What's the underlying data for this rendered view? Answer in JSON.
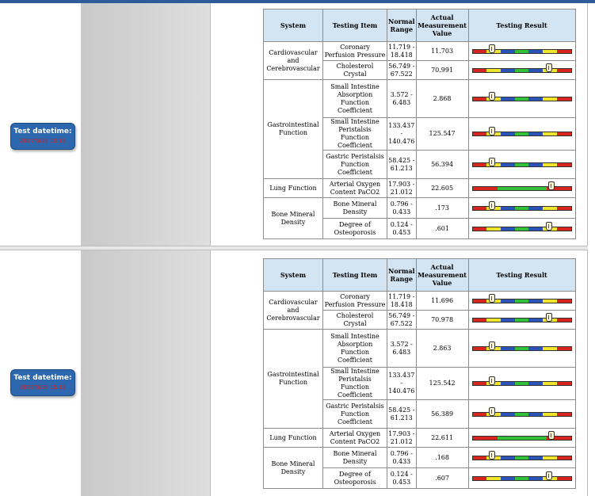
{
  "colors": {
    "red": "#d8251d",
    "yellow": "#f0e52a",
    "blue": "#2c54b8",
    "green": "#34c13a",
    "header_bg": "#d3e4f3",
    "badge_bg": "#2d67ad",
    "badge_value": "#d42020"
  },
  "headers": {
    "system": "System",
    "item": "Testing Item",
    "range": "Normal Range",
    "value": "Actual Measurement Value",
    "result": "Testing Result"
  },
  "records": [
    {
      "datetime_label": "Test datetime:",
      "datetime_value": "2017/3/28 15:11",
      "groups": [
        {
          "system": "Cardiovascular and Cerebrovascular",
          "rows": [
            {
              "item": "Coronary Perfusion Pressure",
              "range": "11.719 - 18.418",
              "value": "11.703",
              "bar": "ryb5",
              "marker": 0.2
            },
            {
              "item": "Cholesterol Crystal",
              "range": "56.749 - 67.522",
              "value": "70.991",
              "bar": "rybgybr",
              "marker": 0.78
            }
          ]
        },
        {
          "system": "Gastrointestinal Function",
          "rows": [
            {
              "item": "Small Intestine Absorption Function Coefficient",
              "range": "3.572 - 6.483",
              "value": "2.868",
              "bar": "ryb5",
              "marker": 0.2
            },
            {
              "item": "Small Intestine Peristalsis Function Coefficient",
              "range": "133.437 - 140.476",
              "value": "125.547",
              "bar": "ryb5",
              "marker": 0.2
            },
            {
              "item": "Gastric Peristalsis Function Coefficient",
              "range": "58.425 - 61.213",
              "value": "56.394",
              "bar": "ryb5",
              "marker": 0.2
            }
          ]
        },
        {
          "system": "Lung Function",
          "rows": [
            {
              "item": "Arterial Oxygen Content PaCO2",
              "range": "17.903 - 21.012",
              "value": "22.605",
              "bar": "rgr",
              "marker": 0.8
            }
          ]
        },
        {
          "system": "Bone Mineral Density",
          "rows": [
            {
              "item": "Bone Mineral Density",
              "range": "0.796 - 0.433",
              "value": ".173",
              "bar": "ryb5",
              "marker": 0.2
            },
            {
              "item": "Degree of Osteoporosis",
              "range": "0.124 - 0.453",
              "value": ".601",
              "bar": "rybgybr",
              "marker": 0.78
            }
          ]
        }
      ]
    },
    {
      "datetime_label": "Test datetime:",
      "datetime_value": "2017/3/28 15:11",
      "groups": [
        {
          "system": "Cardiovascular and Cerebrovascular",
          "rows": [
            {
              "item": "Coronary Perfusion Pressure",
              "range": "11.719 - 18.418",
              "value": "11.696",
              "bar": "ryb5",
              "marker": 0.2
            },
            {
              "item": "Cholesterol Crystal",
              "range": "56.749 - 67.522",
              "value": "70.978",
              "bar": "rybgybr",
              "marker": 0.78
            }
          ]
        },
        {
          "system": "Gastrointestinal Function",
          "rows": [
            {
              "item": "Small Intestine Absorption Function Coefficient",
              "range": "3.572 - 6.483",
              "value": "2.863",
              "bar": "ryb5",
              "marker": 0.2
            },
            {
              "item": "Small Intestine Peristalsis Function Coefficient",
              "range": "133.437 - 140.476",
              "value": "125.542",
              "bar": "ryb5",
              "marker": 0.2
            },
            {
              "item": "Gastric Peristalsis Function Coefficient",
              "range": "58.425 - 61.213",
              "value": "56.389",
              "bar": "ryb5",
              "marker": 0.2
            }
          ]
        },
        {
          "system": "Lung Function",
          "rows": [
            {
              "item": "Arterial Oxygen Content PaCO2",
              "range": "17.903 - 21.012",
              "value": "22.611",
              "bar": "rgr",
              "marker": 0.8
            }
          ]
        },
        {
          "system": "Bone Mineral Density",
          "rows": [
            {
              "item": "Bone Mineral Density",
              "range": "0.796 - 0.433",
              "value": ".168",
              "bar": "ryb5",
              "marker": 0.2
            },
            {
              "item": "Degree of Osteoporosis",
              "range": "0.124 - 0.453",
              "value": ".607",
              "bar": "rybgybr",
              "marker": 0.78
            }
          ]
        }
      ]
    }
  ]
}
